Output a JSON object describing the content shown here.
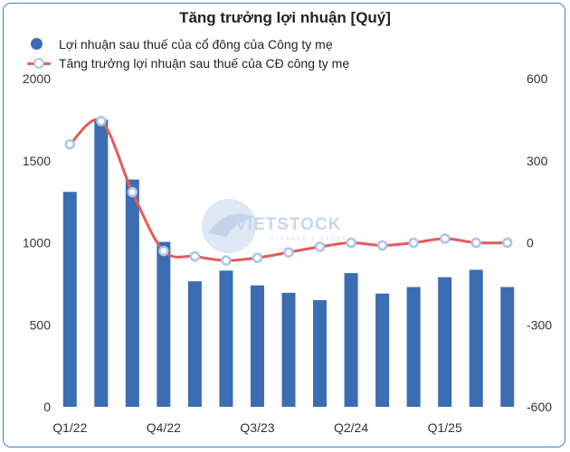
{
  "chart_data": {
    "type": "bar+line",
    "title": "Tăng trưởng lợi nhuận [Quý]",
    "categories": [
      "Q1/22",
      "Q2/22",
      "Q3/22",
      "Q4/22",
      "Q1/23",
      "Q2/23",
      "Q3/23",
      "Q4/23",
      "Q1/24",
      "Q2/24",
      "Q3/24",
      "Q4/24",
      "Q1/25",
      "Q2/25",
      "Q3/25"
    ],
    "x_tick_labels": [
      "Q1/22",
      "Q4/22",
      "Q3/23",
      "Q2/24",
      "Q1/25"
    ],
    "series": [
      {
        "name": "Lợi nhuận sau thuế của cổ đông của Công ty mẹ",
        "type": "bar",
        "axis": "left",
        "values": [
          1310,
          1750,
          1385,
          1005,
          765,
          830,
          740,
          695,
          650,
          815,
          690,
          730,
          790,
          835,
          730
        ]
      },
      {
        "name": "Tăng trưởng lợi nhuận sau thuế của CĐ công ty mẹ",
        "type": "line",
        "axis": "right",
        "values": [
          360,
          445,
          185,
          -30,
          -50,
          -65,
          -55,
          -35,
          -15,
          0,
          -10,
          0,
          15,
          0,
          0
        ]
      }
    ],
    "y_left": {
      "min": 0,
      "max": 2000,
      "ticks": [
        0,
        500,
        1000,
        1500,
        2000
      ]
    },
    "y_right": {
      "min": -600,
      "max": 600,
      "ticks": [
        -600,
        -300,
        0,
        300,
        600
      ]
    },
    "legend_position": "top-left",
    "grid": false
  },
  "colors": {
    "bar": "#3b6db3",
    "line": "#e8595b",
    "marker_fill": "#ffffff",
    "marker_stroke": "#a9c5ea",
    "border": "#4a7bc8"
  },
  "watermark": {
    "text": "VIETSTOCK",
    "subtext": "FINANCE & STOCK"
  }
}
